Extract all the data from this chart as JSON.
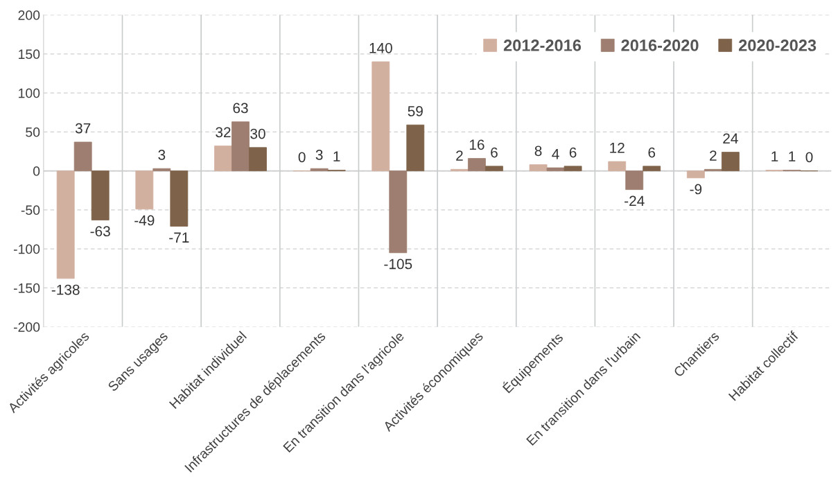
{
  "chart_data": {
    "type": "bar",
    "categories": [
      "Activités agricoles",
      "Sans usages",
      "Habitat individuel",
      "Infrastructures de déplacements",
      "En transition dans l'agricole",
      "Activités économiques",
      "Équipements",
      "En transition dans l'urbain",
      "Chantiers",
      "Habitat collectif"
    ],
    "series": [
      {
        "name": "2012-2016",
        "color": "#d2b0a0",
        "values": [
          -138,
          -49,
          32,
          0,
          140,
          2,
          8,
          12,
          -9,
          1
        ]
      },
      {
        "name": "2016-2020",
        "color": "#9e7e70",
        "values": [
          37,
          3,
          63,
          3,
          -105,
          16,
          4,
          -24,
          2,
          1
        ]
      },
      {
        "name": "2020-2023",
        "color": "#7e634a",
        "values": [
          -63,
          -71,
          30,
          1,
          59,
          6,
          6,
          6,
          24,
          0
        ]
      }
    ],
    "ylim": [
      -200,
      200
    ],
    "yticks": [
      -200,
      -150,
      -100,
      -50,
      0,
      50,
      100,
      150,
      200
    ],
    "grid": true,
    "legend": "top right",
    "data_labels": true
  }
}
